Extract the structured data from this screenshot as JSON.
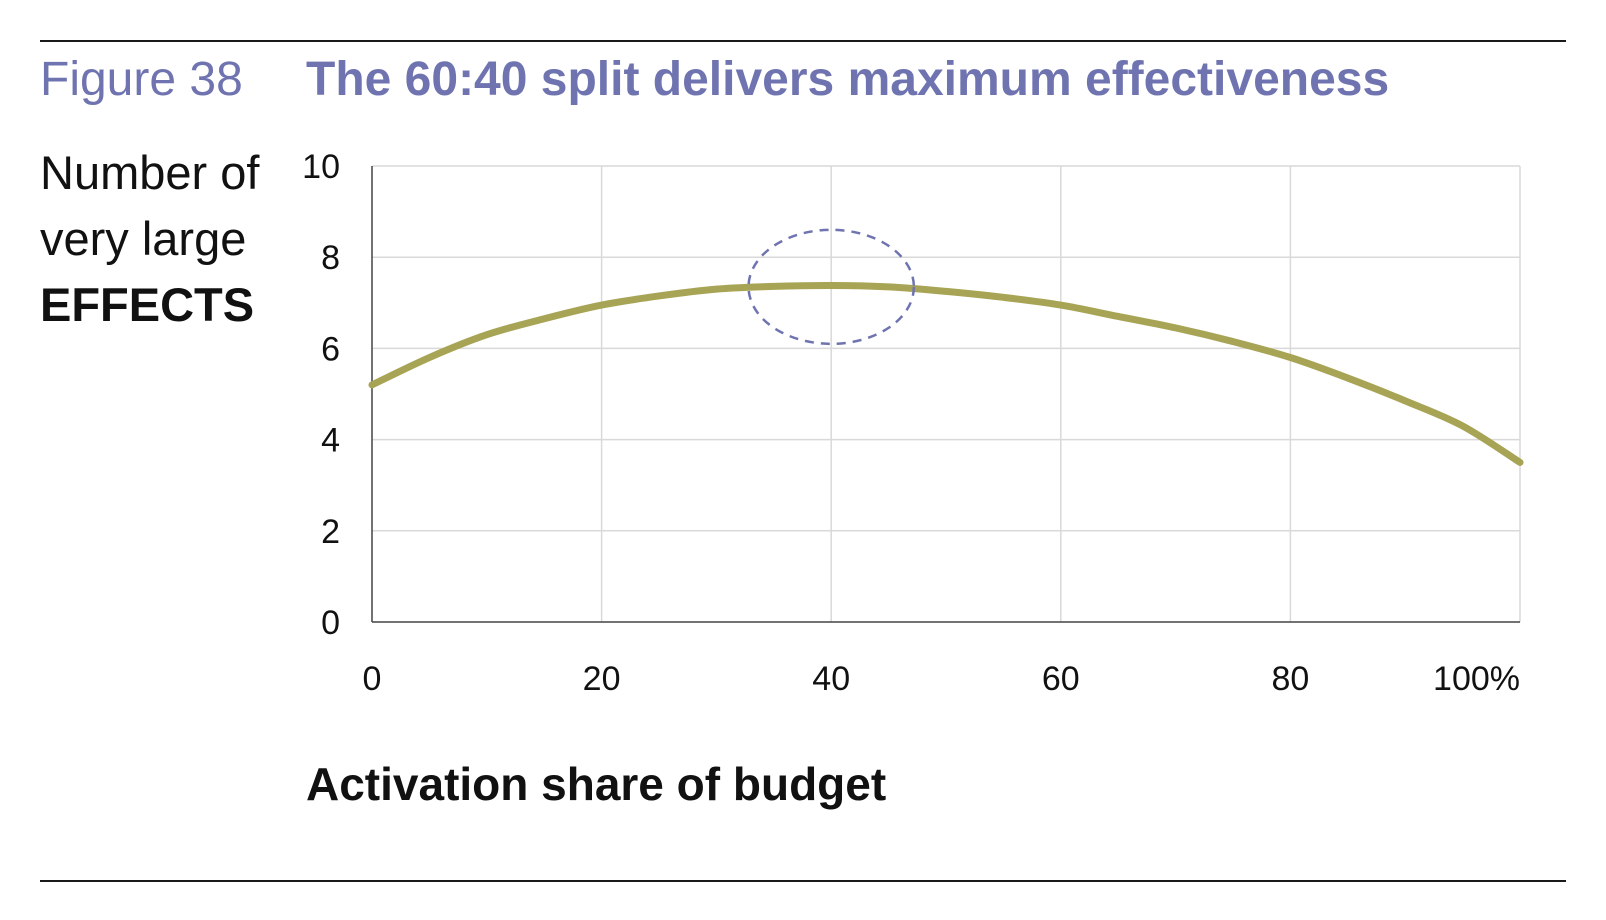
{
  "figure": {
    "label": "Figure 38",
    "title": "The 60:40 split delivers maximum effectiveness"
  },
  "colors": {
    "title": "#6f74b0",
    "curve": "#a8a455",
    "highlight": "#6f74b0",
    "grid": "#d9d9d9",
    "axis": "#444444"
  },
  "chart_data": {
    "type": "line",
    "title": "The 60:40 split delivers maximum effectiveness",
    "ylabel_lines": [
      "Number of",
      "very large",
      "EFFECTS"
    ],
    "xlabel": "Activation share of budget",
    "xlim": [
      0,
      100
    ],
    "ylim": [
      0,
      10
    ],
    "x_ticks": [
      0,
      20,
      40,
      60,
      80,
      100
    ],
    "x_tick_labels": [
      "0",
      "20",
      "40",
      "60",
      "80",
      "100%"
    ],
    "y_ticks": [
      0,
      2,
      4,
      6,
      8,
      10
    ],
    "y_tick_labels": [
      "0",
      "2",
      "4",
      "6",
      "8",
      "10"
    ],
    "grid": true,
    "series": [
      {
        "x": [
          0,
          5,
          10,
          15,
          20,
          25,
          30,
          35,
          40,
          45,
          50,
          55,
          60,
          65,
          70,
          75,
          80,
          85,
          90,
          95,
          100
        ],
        "y": [
          5.2,
          5.8,
          6.3,
          6.65,
          6.95,
          7.15,
          7.3,
          7.36,
          7.38,
          7.35,
          7.25,
          7.12,
          6.95,
          6.7,
          6.45,
          6.15,
          5.8,
          5.35,
          4.85,
          4.3,
          3.5
        ]
      }
    ],
    "highlight": {
      "shape": "dashed-ellipse",
      "center": [
        40,
        7.35
      ],
      "rx": 7.2,
      "ry": 1.25
    }
  }
}
